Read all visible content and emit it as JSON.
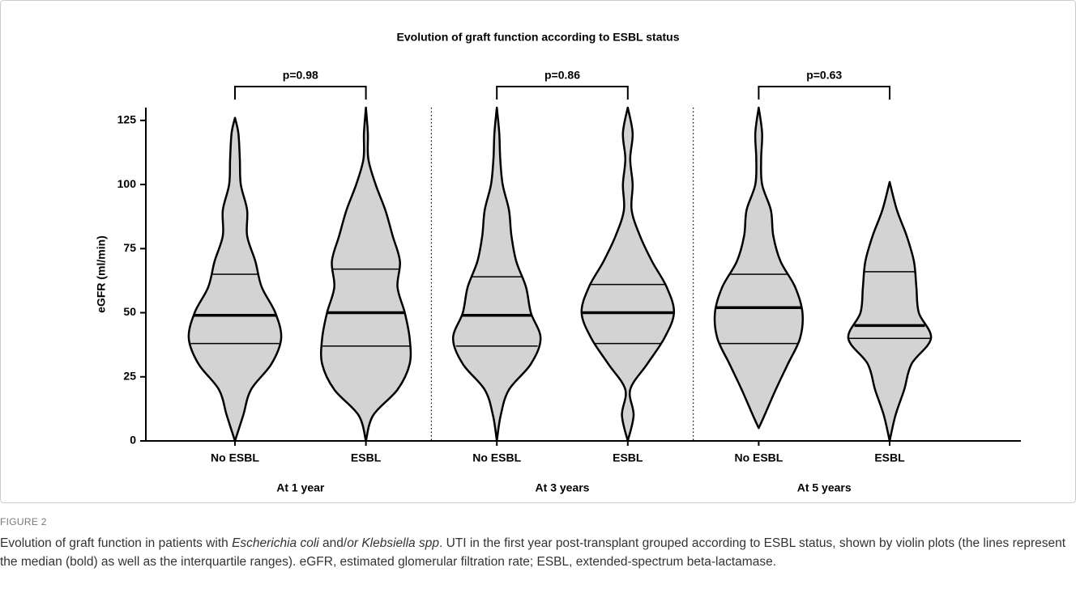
{
  "chart_data": {
    "type": "violin",
    "title": "Evolution of graft function according to ESBL status",
    "y_label": "eGFR (ml/min)",
    "ylim": [
      0,
      130
    ],
    "yticks": [
      0,
      25,
      50,
      75,
      100,
      125
    ],
    "color": "#d3d3d3",
    "density_levels": [
      0,
      10,
      20,
      30,
      40,
      50,
      60,
      70,
      80,
      90,
      100,
      110,
      120,
      130
    ],
    "groups": [
      {
        "label": "At 1 year",
        "p_value": "p=0.98",
        "violins": [
          {
            "name": "No ESBL",
            "min": 0,
            "q1": 38,
            "median": 49,
            "q3": 65,
            "max": 126,
            "density": [
              null,
              0.17,
              0.33,
              0.75,
              0.95,
              0.83,
              0.55,
              0.42,
              0.25,
              0.25,
              0.12,
              0.1,
              0.07,
              null
            ]
          },
          {
            "name": "ESBL",
            "min": 0,
            "q1": 37,
            "median": 50,
            "q3": 67,
            "max": 130,
            "density": [
              null,
              0.15,
              0.65,
              0.9,
              0.9,
              0.8,
              0.65,
              0.7,
              0.55,
              0.4,
              0.2,
              0.05,
              0.04,
              null
            ]
          }
        ]
      },
      {
        "label": "At 3 years",
        "p_value": "p=0.86",
        "violins": [
          {
            "name": "No ESBL",
            "min": 0,
            "q1": 37,
            "median": 49,
            "q3": 64,
            "max": 130,
            "density": [
              null,
              0.08,
              0.25,
              0.7,
              0.9,
              0.7,
              0.6,
              0.4,
              0.3,
              0.25,
              0.12,
              0.07,
              0.05,
              null
            ]
          },
          {
            "name": "ESBL",
            "min": 0,
            "q1": 38,
            "median": 50,
            "q3": 61,
            "max": 130,
            "density": [
              null,
              0.12,
              0.05,
              0.4,
              0.75,
              0.95,
              0.8,
              0.5,
              0.25,
              0.08,
              0.1,
              0.05,
              0.1,
              null
            ]
          }
        ]
      },
      {
        "label": "At 5 years",
        "p_value": "p=0.63",
        "violins": [
          {
            "name": "No ESBL",
            "min": 5,
            "q1": 38,
            "median": 52,
            "q3": 65,
            "max": 130,
            "density": [
              null,
              0.12,
              0.35,
              0.6,
              0.85,
              0.9,
              0.75,
              0.45,
              0.3,
              0.25,
              0.07,
              0.05,
              0.07,
              null
            ]
          },
          {
            "name": "ESBL",
            "min": 0,
            "q1": 40,
            "median": 45,
            "q3": 66,
            "max": 101,
            "density": [
              null,
              0.12,
              0.3,
              0.45,
              0.85,
              0.6,
              0.55,
              0.5,
              0.35,
              0.15,
              null,
              null,
              null,
              null
            ]
          }
        ]
      }
    ]
  },
  "figure_label": "FIGURE 2",
  "caption": [
    {
      "text": "Evolution of graft function in patients with ",
      "italic": false
    },
    {
      "text": "Escherichia coli",
      "italic": true
    },
    {
      "text": " and/",
      "italic": false
    },
    {
      "text": "or Klebsiella spp",
      "italic": true
    },
    {
      "text": ". UTI in the first year post-transplant grouped according to ESBL status, shown by violin plots (the lines represent the median (bold) as well as the interquartile ranges). eGFR, estimated glomerular filtration rate; ESBL, extended-spectrum beta-lactamase.",
      "italic": false
    }
  ]
}
